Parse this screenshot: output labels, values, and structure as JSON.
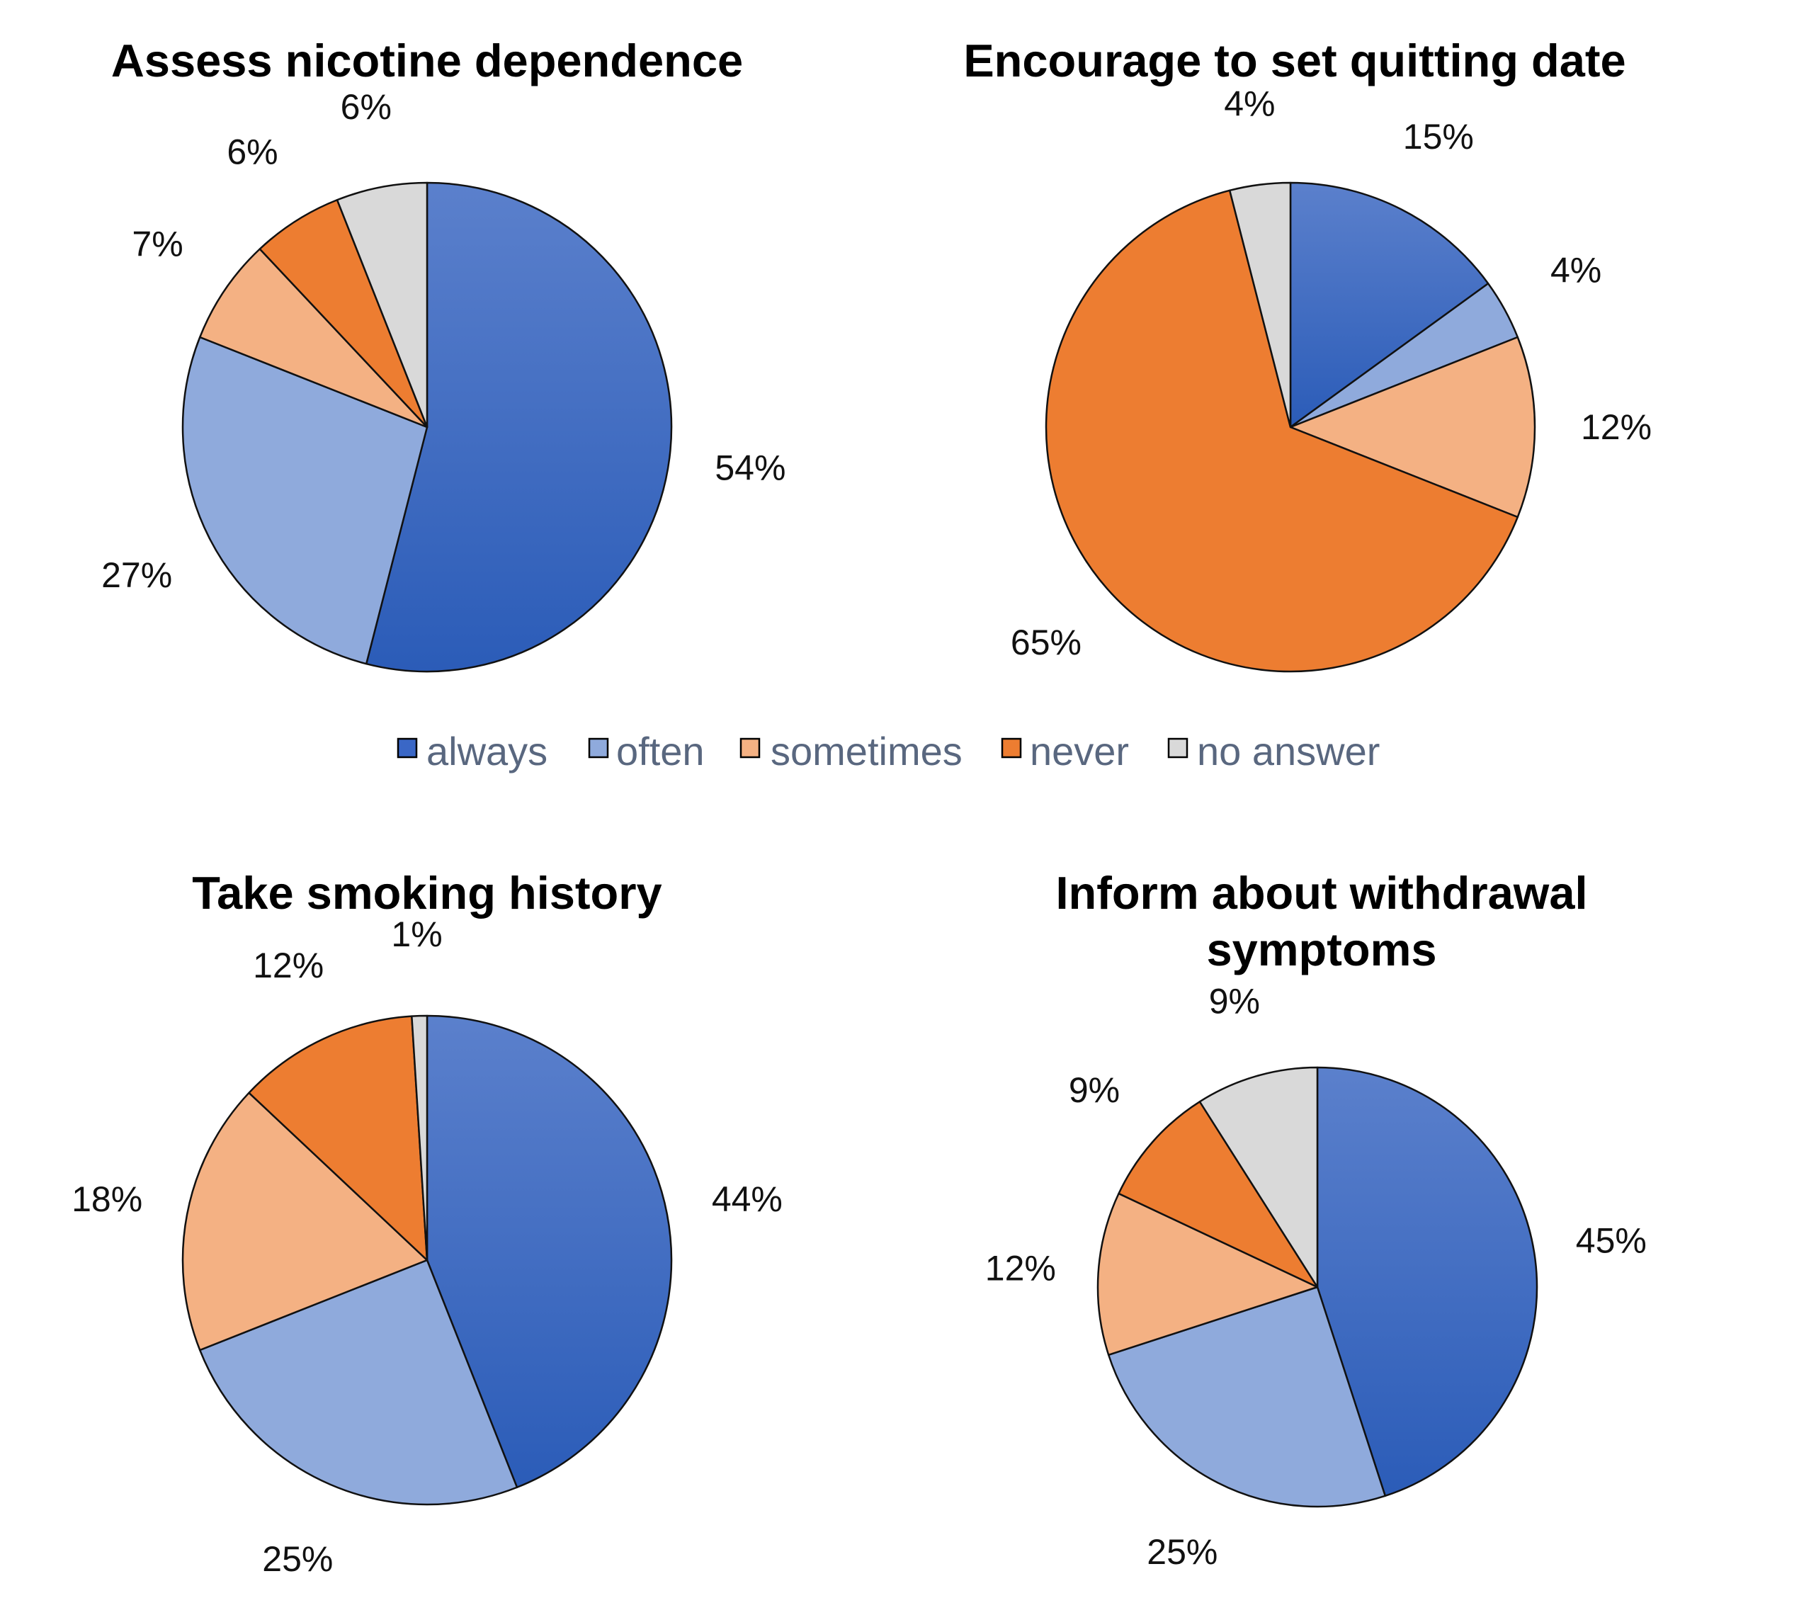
{
  "chart_data": [
    {
      "type": "pie",
      "title": "Assess nicotine dependence",
      "categories": [
        "always",
        "often",
        "sometimes",
        "never",
        "no answer"
      ],
      "values": [
        54,
        27,
        7,
        6,
        6
      ],
      "labels": [
        "54%",
        "27%",
        "7%",
        "6%",
        "6%"
      ]
    },
    {
      "type": "pie",
      "title": "Encourage to set quitting date",
      "categories": [
        "always",
        "often",
        "sometimes",
        "never",
        "no answer"
      ],
      "values": [
        15,
        4,
        12,
        65,
        4
      ],
      "labels": [
        "15%",
        "4%",
        "12%",
        "65%",
        "4%"
      ]
    },
    {
      "type": "pie",
      "title": "Take smoking history",
      "categories": [
        "always",
        "often",
        "sometimes",
        "never",
        "no answer"
      ],
      "values": [
        44,
        25,
        18,
        12,
        1
      ],
      "labels": [
        "44%",
        "25%",
        "18%",
        "12%",
        "1%"
      ]
    },
    {
      "type": "pie",
      "title": "Inform about withdrawal symptoms",
      "title_lines": [
        "Inform about withdrawal",
        "symptoms"
      ],
      "categories": [
        "always",
        "often",
        "sometimes",
        "never",
        "no answer"
      ],
      "values": [
        45,
        25,
        12,
        9,
        9
      ],
      "labels": [
        "45%",
        "25%",
        "12%",
        "9%",
        "9%"
      ]
    }
  ],
  "legend": {
    "position": "center",
    "items": [
      {
        "label": "always",
        "color": "#3a67c6"
      },
      {
        "label": "often",
        "color": "#8faadc"
      },
      {
        "label": "sometimes",
        "color": "#f4b183"
      },
      {
        "label": "never",
        "color": "#ed7d31"
      },
      {
        "label": "no answer",
        "color": "#d9d9d9"
      }
    ]
  }
}
